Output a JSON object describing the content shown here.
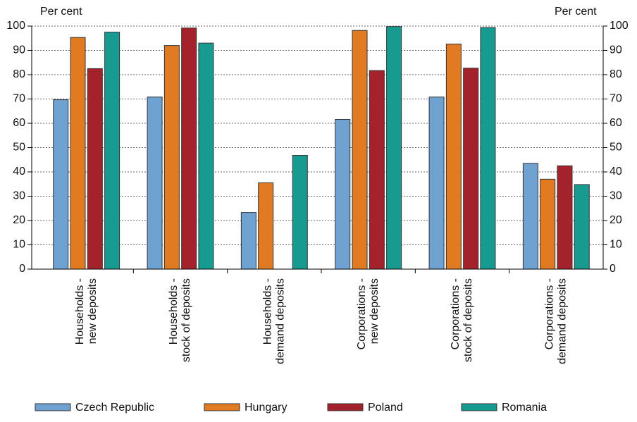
{
  "chart_data": {
    "type": "bar",
    "y_label": "Per cent",
    "y2_label": "Per cent",
    "categories": [
      [
        "Households -",
        "new deposits"
      ],
      [
        "Households -",
        "stock of deposits"
      ],
      [
        "Households -",
        "demand deposits"
      ],
      [
        "Corporations -",
        "new deposits"
      ],
      [
        "Corporations -",
        "stock of deposits"
      ],
      [
        "Corporations -",
        "demand deposits"
      ]
    ],
    "series": [
      {
        "name": "Czech Republic",
        "color": "#6fa1d1",
        "values": [
          69.7,
          70.8,
          23.3,
          61.6,
          70.8,
          43.5
        ]
      },
      {
        "name": "Hungary",
        "color": "#e07b22",
        "values": [
          95.3,
          92.0,
          35.5,
          98.2,
          92.6,
          37.0
        ]
      },
      {
        "name": "Poland",
        "color": "#a3222b",
        "values": [
          82.5,
          99.2,
          null,
          81.7,
          82.7,
          42.5
        ]
      },
      {
        "name": "Romania",
        "color": "#179b90",
        "values": [
          97.5,
          93.0,
          46.8,
          99.8,
          99.4,
          34.8
        ]
      }
    ],
    "ylim": [
      0,
      100
    ],
    "yticks": [
      0,
      10,
      20,
      30,
      40,
      50,
      60,
      70,
      80,
      90,
      100
    ],
    "y2lim": [
      0,
      100
    ],
    "y2ticks": [
      0,
      10,
      20,
      30,
      40,
      50,
      60,
      70,
      80,
      90,
      100
    ],
    "grid": true
  }
}
